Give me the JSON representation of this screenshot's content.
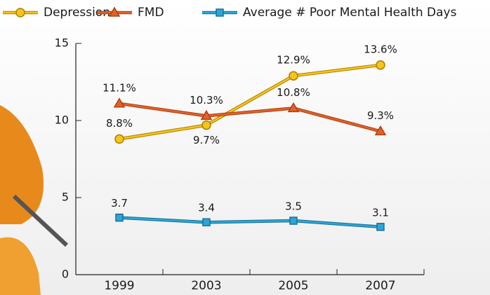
{
  "chart_data": {
    "type": "line",
    "categories": [
      "1999",
      "2003",
      "2005",
      "2007"
    ],
    "series": [
      {
        "name": "Depression",
        "color": "#f5c518",
        "values": [
          8.8,
          9.7,
          12.9,
          13.6
        ],
        "value_labels": [
          "8.8%",
          "9.7%",
          "12.9%",
          "13.6%"
        ]
      },
      {
        "name": "FMD",
        "color": "#e0622a",
        "values": [
          11.1,
          10.3,
          10.8,
          9.3
        ],
        "value_labels": [
          "11.1%",
          "10.3%",
          "10.8%",
          "9.3%"
        ]
      },
      {
        "name": "Average # Poor Mental Health Days",
        "color": "#2aa7d8",
        "values": [
          3.7,
          3.4,
          3.5,
          3.1
        ]
      }
    ],
    "ylim": [
      0,
      15
    ],
    "yticks": [
      0,
      5,
      10,
      15
    ],
    "grid": false,
    "legend": "top"
  }
}
